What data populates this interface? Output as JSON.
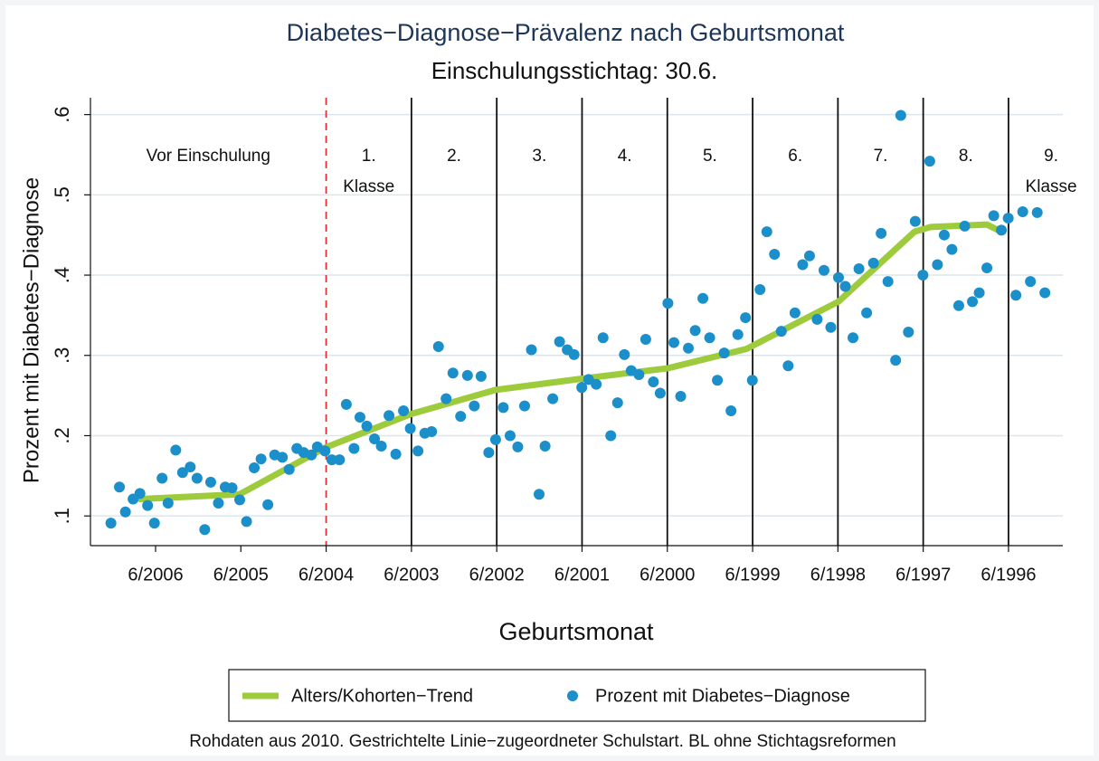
{
  "chart_data": {
    "type": "scatter",
    "title": "Diabetes−Diagnose−Prävalenz nach Geburtsmonat",
    "subtitle": "Einschulungsstichtag: 30.6.",
    "x_label": "Geburtsmonat",
    "y_label": "Prozent mit Diabetes−Diagnose",
    "note": "Rohdaten aus 2010. Gestrichtelte Linie−zugeordneter Schulstart. BL ohne Stichtagsreformen",
    "region_labels": [
      "Vor Einschulung",
      "1.",
      "2.",
      "3.",
      "4.",
      "5.",
      "6.",
      "7.",
      "8.",
      "9."
    ],
    "class_word": "Klasse",
    "xlim": [
      2007.18,
      1995.78
    ],
    "ylim": [
      0.063,
      0.621
    ],
    "xticks": [
      {
        "value": 2006.4167,
        "label": "6/2006"
      },
      {
        "value": 2005.4167,
        "label": "6/2005"
      },
      {
        "value": 2004.4167,
        "label": "6/2004"
      },
      {
        "value": 2003.4167,
        "label": "6/2003"
      },
      {
        "value": 2002.4167,
        "label": "6/2002"
      },
      {
        "value": 2001.4167,
        "label": "6/2001"
      },
      {
        "value": 2000.4167,
        "label": "6/2000"
      },
      {
        "value": 1999.4167,
        "label": "6/1999"
      },
      {
        "value": 1998.4167,
        "label": "6/1998"
      },
      {
        "value": 1997.4167,
        "label": "6/1997"
      },
      {
        "value": 1996.4167,
        "label": "6/1996"
      }
    ],
    "yticks": [
      {
        "value": 0.1,
        "label": ".1"
      },
      {
        "value": 0.2,
        "label": ".2"
      },
      {
        "value": 0.3,
        "label": ".3"
      },
      {
        "value": 0.4,
        "label": ".4"
      },
      {
        "value": 0.5,
        "label": ".5"
      },
      {
        "value": 0.6,
        "label": ".6"
      }
    ],
    "grid": true,
    "series": [
      {
        "name": "Alters/Kohorten−Trend",
        "color": "#9dcb3c",
        "kind": "line",
        "x": [
          2006.6,
          2005.43,
          2004.43,
          2003.42,
          2002.43,
          2001.42,
          2000.41,
          1999.49,
          1998.41,
          1997.52,
          1997.33,
          1996.67,
          1996.5
        ],
        "values": [
          0.121,
          0.127,
          0.185,
          0.227,
          0.257,
          0.271,
          0.284,
          0.308,
          0.367,
          0.454,
          0.46,
          0.463,
          0.454
        ]
      },
      {
        "name": "Prozent mit Diabetes−Diagnose",
        "color": "#1a8fc9",
        "kind": "scatter",
        "x": [
          2006.94,
          2006.84,
          2006.77,
          2006.68,
          2006.6,
          2006.51,
          2006.43,
          2006.34,
          2006.27,
          2006.18,
          2006.1,
          2006.01,
          2005.93,
          2005.84,
          2005.77,
          2005.68,
          2005.6,
          2005.52,
          2005.43,
          2005.35,
          2005.26,
          2005.18,
          2005.1,
          2005.02,
          2004.93,
          2004.85,
          2004.76,
          2004.68,
          2004.59,
          2004.52,
          2004.43,
          2004.35,
          2004.26,
          2004.18,
          2004.09,
          2004.02,
          2003.94,
          2003.85,
          2003.77,
          2003.68,
          2003.6,
          2003.51,
          2003.43,
          2003.34,
          2003.26,
          2003.18,
          2003.1,
          2003.01,
          2002.93,
          2002.84,
          2002.76,
          2002.68,
          2002.6,
          2002.51,
          2002.43,
          2002.34,
          2002.26,
          2002.17,
          2002.09,
          2002.01,
          2001.92,
          2001.85,
          2001.76,
          2001.68,
          2001.59,
          2001.51,
          2001.42,
          2001.34,
          2001.25,
          2001.17,
          2001.08,
          2001.0,
          2000.92,
          2000.84,
          2000.75,
          2000.67,
          2000.58,
          2000.5,
          2000.41,
          2000.34,
          2000.26,
          2000.17,
          2000.09,
          2000.0,
          1999.92,
          1999.83,
          1999.75,
          1999.67,
          1999.59,
          1999.5,
          1999.42,
          1999.33,
          1999.25,
          1999.16,
          1999.08,
          1999.0,
          1998.92,
          1998.83,
          1998.75,
          1998.66,
          1998.58,
          1998.5,
          1998.41,
          1998.33,
          1998.24,
          1998.17,
          1998.08,
          1998.0,
          1997.91,
          1997.83,
          1997.74,
          1997.68,
          1997.59,
          1997.51,
          1997.42,
          1997.34,
          1997.25,
          1997.17,
          1997.08,
          1997.0,
          1996.93,
          1996.84,
          1996.76,
          1996.67,
          1996.59,
          1996.5,
          1996.42,
          1996.33,
          1996.25,
          1996.16,
          1996.08,
          1995.99
        ],
        "values": [
          0.091,
          0.136,
          0.105,
          0.121,
          0.128,
          0.113,
          0.091,
          0.147,
          0.116,
          0.182,
          0.154,
          0.161,
          0.147,
          0.083,
          0.142,
          0.116,
          0.136,
          0.135,
          0.12,
          0.093,
          0.16,
          0.171,
          0.114,
          0.176,
          0.173,
          0.158,
          0.184,
          0.179,
          0.176,
          0.186,
          0.181,
          0.17,
          0.17,
          0.239,
          0.184,
          0.223,
          0.212,
          0.196,
          0.187,
          0.225,
          0.177,
          0.231,
          0.209,
          0.181,
          0.203,
          0.205,
          0.311,
          0.246,
          0.278,
          0.224,
          0.275,
          0.237,
          0.274,
          0.179,
          0.195,
          0.235,
          0.2,
          0.186,
          0.237,
          0.307,
          0.127,
          0.187,
          0.246,
          0.317,
          0.307,
          0.301,
          0.26,
          0.27,
          0.264,
          0.322,
          0.2,
          0.241,
          0.301,
          0.281,
          0.276,
          0.32,
          0.267,
          0.253,
          0.365,
          0.316,
          0.249,
          0.309,
          0.331,
          0.371,
          0.322,
          0.269,
          0.303,
          0.231,
          0.326,
          0.347,
          0.269,
          0.382,
          0.454,
          0.426,
          0.33,
          0.287,
          0.353,
          0.413,
          0.424,
          0.345,
          0.406,
          0.335,
          0.397,
          0.386,
          0.322,
          0.408,
          0.353,
          0.415,
          0.452,
          0.392,
          0.294,
          0.599,
          0.329,
          0.467,
          0.4,
          0.542,
          0.413,
          0.45,
          0.432,
          0.362,
          0.461,
          0.367,
          0.378,
          0.409,
          0.474,
          0.456,
          0.471,
          0.375,
          0.479,
          0.392,
          0.478,
          0.378
        ]
      }
    ]
  }
}
